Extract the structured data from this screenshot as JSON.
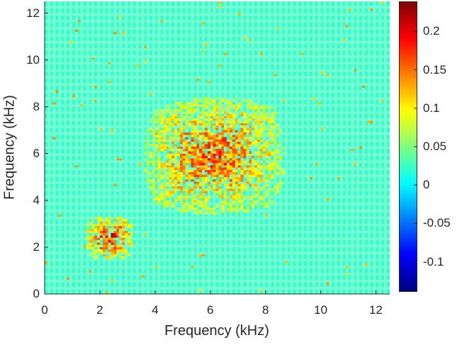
{
  "chart_data": {
    "type": "heatmap",
    "xlabel": "Frequency (kHz)",
    "ylabel": "Frequency (kHz)",
    "xlim": [
      0,
      12.5
    ],
    "ylim": [
      0,
      12.5
    ],
    "xticks": [
      "0",
      "2",
      "4",
      "6",
      "8",
      "10",
      "12"
    ],
    "yticks": [
      "0",
      "2",
      "4",
      "6",
      "8",
      "10",
      "12"
    ],
    "colormap": "jet",
    "clim": [
      -0.139,
      0.239
    ],
    "colorbar_ticks": [
      "-0.1",
      "-0.05",
      "0",
      "0.05",
      "0.1",
      "0.15",
      "0.2"
    ],
    "background_value": 0.02,
    "clusters": [
      {
        "x_range_khz": [
          1.5,
          3.2
        ],
        "y_range_khz": [
          1.5,
          3.3
        ],
        "peak_value": 0.23
      },
      {
        "x_range_khz": [
          3.7,
          8.6
        ],
        "y_range_khz": [
          3.5,
          8.3
        ],
        "peak_value": 0.2
      }
    ],
    "grid": false
  }
}
